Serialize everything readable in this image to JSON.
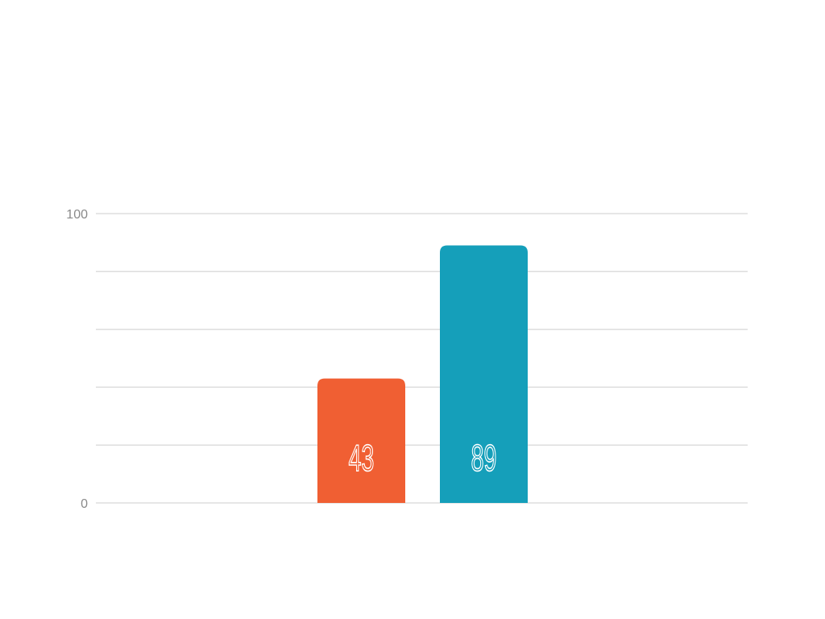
{
  "chart_data": {
    "type": "bar",
    "title": "",
    "xlabel": "",
    "ylabel": "",
    "ylim": [
      0,
      100
    ],
    "yticks": [
      0,
      20,
      40,
      60,
      80,
      100
    ],
    "ytick_labels": [
      "0",
      "",
      "",
      "",
      "",
      "100"
    ],
    "grid": true,
    "values": [
      43,
      89
    ],
    "data_labels": [
      "43",
      "89"
    ],
    "colors": [
      "#f05f33",
      "#159fba"
    ],
    "grid_color": "#dddddd"
  }
}
